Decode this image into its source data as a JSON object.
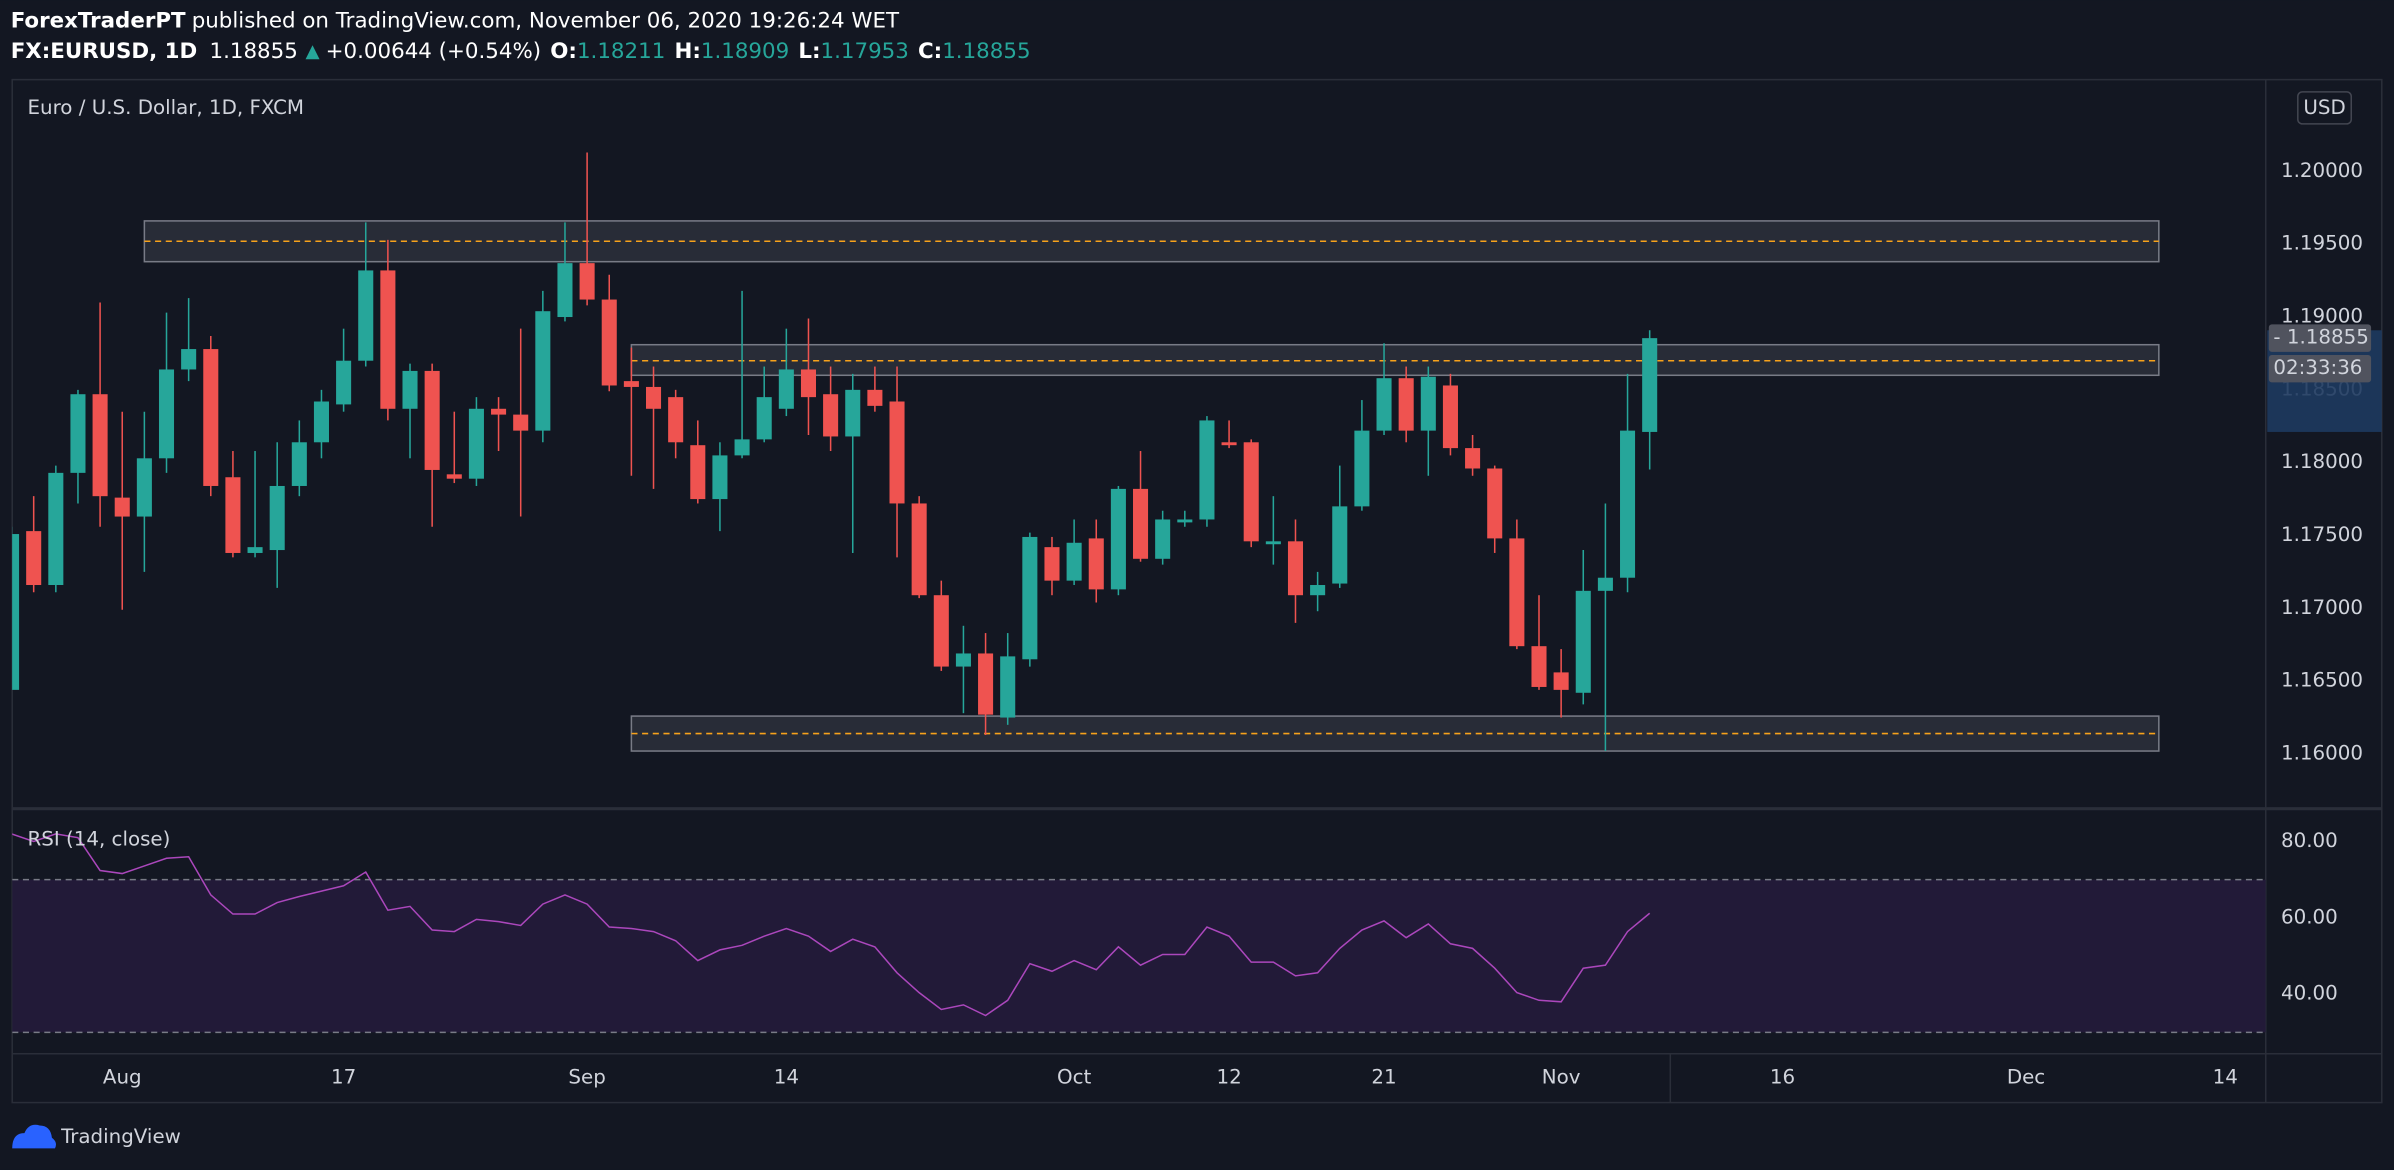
{
  "header": {
    "author": "ForexTraderPT",
    "published": "published on TradingView.com, November 06, 2020 19:26:24 WET",
    "symbol": "FX:EURUSD, 1D",
    "last": "1.18855",
    "direction": "▲",
    "change": "+0.00644 (+0.54%)",
    "ohlc": [
      {
        "label": "O:",
        "value": "1.18211"
      },
      {
        "label": "H:",
        "value": "1.18909"
      },
      {
        "label": "L:",
        "value": "1.17953"
      },
      {
        "label": "C:",
        "value": "1.18855"
      }
    ]
  },
  "currency": "USD",
  "brand": "TradingView",
  "chart_data": [
    {
      "type": "candlestick",
      "title": "Euro / U.S. Dollar, 1D, FXCM",
      "up_color": "#26a69a",
      "down_color": "#ef5350",
      "grid": false,
      "candles": {
        "open": [
          1.1644,
          1.1753,
          1.1716,
          1.1793,
          1.1847,
          1.1776,
          1.1763,
          1.1803,
          1.1864,
          1.1878,
          1.179,
          1.1738,
          1.174,
          1.1784,
          1.1814,
          1.184,
          1.187,
          1.1932,
          1.1837,
          1.1863,
          1.1792,
          1.1789,
          1.1837,
          1.1833,
          1.1822,
          1.19,
          1.1937,
          1.1912,
          1.1856,
          1.1852,
          1.1845,
          1.1812,
          1.1775,
          1.1805,
          1.1816,
          1.1837,
          1.1864,
          1.1847,
          1.1818,
          1.185,
          1.1842,
          1.1772,
          1.1709,
          1.166,
          1.1669,
          1.1625,
          1.1665,
          1.1742,
          1.1719,
          1.1748,
          1.1713,
          1.1782,
          1.1734,
          1.1759,
          1.1761,
          1.1814,
          1.1814,
          1.1744,
          1.1746,
          1.1709,
          1.1717,
          1.177,
          1.1822,
          1.1858,
          1.1822,
          1.1853,
          1.181,
          1.1796,
          1.1748,
          1.1674,
          1.1656,
          1.1642,
          1.1712,
          1.1721,
          1.18211
        ],
        "high": [
          1.1756,
          1.1777,
          1.1798,
          1.185,
          1.191,
          1.1835,
          1.1835,
          1.1903,
          1.1913,
          1.1887,
          1.1808,
          1.1808,
          1.1814,
          1.1829,
          1.185,
          1.1892,
          1.1965,
          1.1953,
          1.1868,
          1.1868,
          1.1835,
          1.1845,
          1.1845,
          1.1892,
          1.1918,
          1.1965,
          1.2013,
          1.1929,
          1.1879,
          1.1866,
          1.185,
          1.1829,
          1.1814,
          1.1918,
          1.1866,
          1.1892,
          1.1899,
          1.1866,
          1.1861,
          1.1866,
          1.1866,
          1.1777,
          1.1719,
          1.1688,
          1.1683,
          1.1683,
          1.1752,
          1.1749,
          1.1761,
          1.1761,
          1.1784,
          1.1808,
          1.1767,
          1.1767,
          1.1832,
          1.1829,
          1.1816,
          1.1777,
          1.1761,
          1.1725,
          1.1798,
          1.1843,
          1.1882,
          1.1866,
          1.1866,
          1.1861,
          1.1819,
          1.1798,
          1.1761,
          1.1709,
          1.1672,
          1.174,
          1.1772,
          1.1861,
          1.18909
        ],
        "low": [
          1.1644,
          1.1711,
          1.1711,
          1.1772,
          1.1756,
          1.1699,
          1.1725,
          1.1793,
          1.1856,
          1.1777,
          1.1735,
          1.1735,
          1.1714,
          1.1777,
          1.1803,
          1.1835,
          1.1866,
          1.1829,
          1.1803,
          1.1756,
          1.1786,
          1.1784,
          1.1808,
          1.1763,
          1.1814,
          1.1897,
          1.1908,
          1.1849,
          1.1791,
          1.1782,
          1.1803,
          1.1772,
          1.1753,
          1.1803,
          1.1814,
          1.1832,
          1.1819,
          1.1808,
          1.1738,
          1.1835,
          1.1735,
          1.1707,
          1.1657,
          1.1628,
          1.1613,
          1.162,
          1.166,
          1.1709,
          1.1716,
          1.1704,
          1.1709,
          1.1732,
          1.173,
          1.1756,
          1.1756,
          1.181,
          1.1742,
          1.173,
          1.169,
          1.1698,
          1.1714,
          1.1767,
          1.1819,
          1.1814,
          1.1791,
          1.1805,
          1.1791,
          1.1738,
          1.1672,
          1.1644,
          1.1625,
          1.1634,
          1.1602,
          1.1711,
          1.17953
        ],
        "close": [
          1.1751,
          1.1716,
          1.1793,
          1.1847,
          1.1777,
          1.1763,
          1.1803,
          1.1864,
          1.1878,
          1.1784,
          1.1738,
          1.1742,
          1.1784,
          1.1814,
          1.1842,
          1.187,
          1.1932,
          1.1837,
          1.1863,
          1.1795,
          1.1789,
          1.1837,
          1.1833,
          1.1822,
          1.1904,
          1.1937,
          1.1912,
          1.1853,
          1.1852,
          1.1837,
          1.1814,
          1.1775,
          1.1805,
          1.1816,
          1.1845,
          1.1864,
          1.1845,
          1.1818,
          1.185,
          1.1839,
          1.1772,
          1.1709,
          1.166,
          1.1669,
          1.1627,
          1.1667,
          1.1749,
          1.1719,
          1.1745,
          1.1713,
          1.1782,
          1.1734,
          1.1761,
          1.1761,
          1.1829,
          1.1812,
          1.1746,
          1.1746,
          1.1709,
          1.1716,
          1.177,
          1.1822,
          1.1858,
          1.1822,
          1.1859,
          1.181,
          1.1796,
          1.1748,
          1.1674,
          1.1646,
          1.1644,
          1.1712,
          1.1721,
          1.1822,
          1.18855
        ]
      },
      "zones": [
        {
          "x": [
            6,
            97
          ],
          "y": [
            1.1938,
            1.1966
          ],
          "mid": 1.1952
        },
        {
          "x": [
            28,
            97
          ],
          "y": [
            1.186,
            1.1881
          ],
          "mid": 1.187
        },
        {
          "x": [
            28,
            97
          ],
          "y": [
            1.1602,
            1.1626
          ],
          "mid": 1.1614
        }
      ],
      "zone_color": "#787b86",
      "mid_color": "#f7a21b",
      "price_badge": {
        "value": 1.18855,
        "label": "- 1.18855",
        "countdown": "02:33:36"
      },
      "xlim": [
        0.03,
        101.83
      ],
      "xticks": [
        {
          "value": 5,
          "label": "Aug"
        },
        {
          "value": 15,
          "label": "17"
        },
        {
          "value": 26,
          "label": "Sep"
        },
        {
          "value": 35,
          "label": "14"
        },
        {
          "value": 48,
          "label": "Oct"
        },
        {
          "value": 55,
          "label": "12"
        },
        {
          "value": 62,
          "label": "21"
        },
        {
          "value": 70,
          "label": "Nov"
        },
        {
          "value": 80,
          "label": "16"
        },
        {
          "value": 91,
          "label": "Dec"
        },
        {
          "value": 100,
          "label": "14"
        }
      ],
      "ylim": [
        1.1564,
        1.2063
      ],
      "yticks": [
        {
          "value": 1.16,
          "label": "1.16000"
        },
        {
          "value": 1.165,
          "label": "1.16500"
        },
        {
          "value": 1.17,
          "label": "1.17000"
        },
        {
          "value": 1.175,
          "label": "1.17500"
        },
        {
          "value": 1.18,
          "label": "1.18000"
        },
        {
          "value": 1.185,
          "label": "1.18500"
        },
        {
          "value": 1.19,
          "label": "1.19000"
        },
        {
          "value": 1.195,
          "label": "1.19500"
        },
        {
          "value": 1.2,
          "label": "1.20000"
        }
      ]
    },
    {
      "type": "line",
      "title": "RSI (14, close)",
      "grid": false,
      "series": [
        {
          "color": "#ab47bc",
          "values": [
            82,
            80,
            82,
            81,
            72.4,
            71.6,
            73.6,
            75.6,
            76,
            66,
            61,
            61,
            64,
            65.6,
            67,
            68.4,
            72,
            62,
            63,
            56.8,
            56.4,
            59.6,
            59,
            58,
            63.6,
            66,
            63.6,
            57.6,
            57.2,
            56.4,
            54,
            48.8,
            51.6,
            52.8,
            55.2,
            57.2,
            55.2,
            51.2,
            54.4,
            52.4,
            45.6,
            40.4,
            36,
            37.2,
            34.4,
            38.4,
            48,
            46,
            48.8,
            46.4,
            52.4,
            47.6,
            50.4,
            50.4,
            57.6,
            55.2,
            48.4,
            48.4,
            44.8,
            45.6,
            52,
            56.8,
            59.2,
            54.8,
            58.4,
            53.2,
            52,
            46.8,
            40.4,
            38.4,
            38,
            46.8,
            47.6,
            56.4,
            61.2
          ]
        }
      ],
      "bands": {
        "upper": 70,
        "lower": 30,
        "fill": "#221a38",
        "color": "#787b86"
      },
      "ylim": [
        24.4,
        88.4
      ],
      "yticks": [
        {
          "value": 40,
          "label": "40.00"
        },
        {
          "value": 60,
          "label": "60.00"
        },
        {
          "value": 80,
          "label": "80.00"
        }
      ]
    }
  ]
}
